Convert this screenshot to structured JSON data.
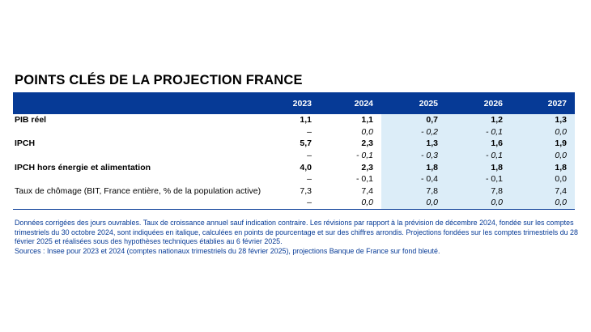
{
  "title": "POINTS CLÉS DE LA PROJECTION FRANCE",
  "columns": [
    "",
    "2023",
    "2024",
    "2025",
    "2026",
    "2027"
  ],
  "rows": [
    {
      "label": "PIB réel",
      "values": [
        "1,1",
        "1,1",
        "0,7",
        "1,2",
        "1,3"
      ]
    },
    {
      "label": "",
      "values": [
        "–",
        "0,0",
        "- 0,2",
        "- 0,1",
        "0,0"
      ]
    },
    {
      "label": "IPCH",
      "values": [
        "5,7",
        "2,3",
        "1,3",
        "1,6",
        "1,9"
      ]
    },
    {
      "label": "",
      "values": [
        "–",
        "- 0,1",
        "- 0,3",
        "- 0,1",
        "0,0"
      ]
    },
    {
      "label": "IPCH hors énergie et alimentation",
      "values": [
        "4,0",
        "2,3",
        "1,8",
        "1,8",
        "1,8"
      ]
    },
    {
      "label": "",
      "values": [
        "–",
        "- 0,1",
        "- 0,4",
        "- 0,1",
        "0,0"
      ]
    },
    {
      "label": "Taux de chômage (BIT, France entière, % de la population active)",
      "values": [
        "7,3",
        "7,4",
        "7,8",
        "7,8",
        "7,4"
      ]
    },
    {
      "label": "",
      "values": [
        "–",
        "0,0",
        "0,0",
        "0,0",
        "0,0"
      ]
    }
  ],
  "notes": {
    "line1": "Données corrigées des jours ouvrables. Taux de croissance annuel sauf indication contraire. Les révisions par rapport à la prévision de décembre 2024, fondée sur les comptes trimestriels du 30 octobre 2024, sont indiquées en italique, calculées en points de pourcentage et sur des chiffres arrondis. Projections fondées sur les comptes trimestriels du 28 février 2025 et réalisées sous des hypothèses techniques établies au 6 février 2025.",
    "line2": "Sources : Insee pour 2023 et 2024 (comptes nationaux trimestriels du 28 février 2025), projections Banque de France sur fond bleuté."
  },
  "colors": {
    "header_bg": "#063a96",
    "projection_bg": "#dcedf8",
    "notes_text": "#063a96"
  }
}
